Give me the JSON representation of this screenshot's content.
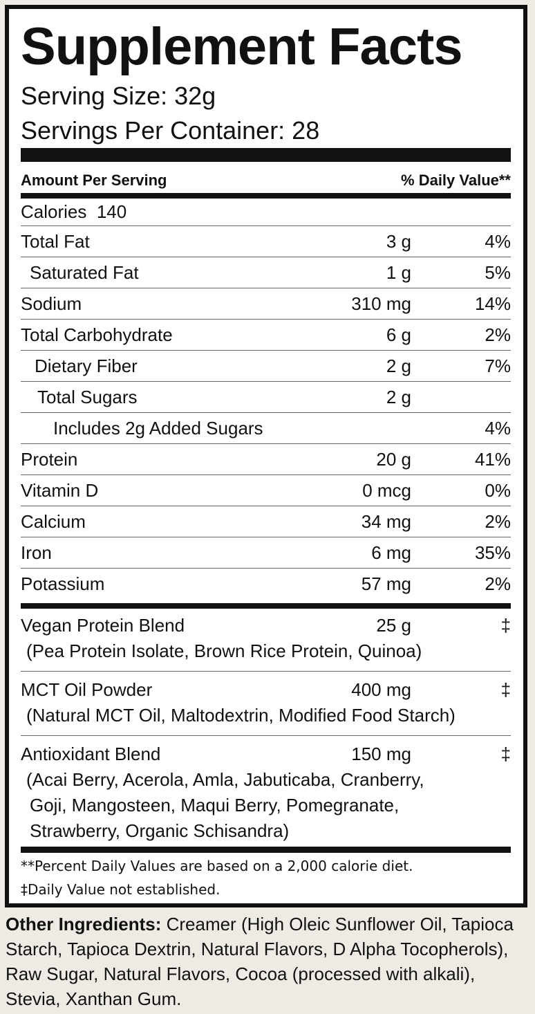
{
  "title": "Supplement Facts",
  "serving_size": "Serving Size: 32g",
  "servings_per_container": "Servings Per Container: 28",
  "header": {
    "amount": "Amount Per Serving",
    "dv": "% Daily Value**"
  },
  "calories": "Calories  140",
  "nutrients": [
    {
      "name": "Total Fat",
      "amount": "3 g",
      "dv": "4%"
    },
    {
      "name": "Saturated Fat",
      "amount": "1 g",
      "dv": "5%"
    },
    {
      "name": "Sodium",
      "amount": "310 mg",
      "dv": "14%"
    },
    {
      "name": "Total Carbohydrate",
      "amount": "6 g",
      "dv": "2%"
    },
    {
      "name": "Dietary Fiber",
      "amount": "2 g",
      "dv": "7%"
    },
    {
      "name": "Total Sugars",
      "amount": "2 g",
      "dv": ""
    },
    {
      "name": "Includes 2g Added Sugars",
      "amount": "",
      "dv": "4%"
    },
    {
      "name": "Protein",
      "amount": "20 g",
      "dv": "41%"
    },
    {
      "name": "Vitamin D",
      "amount": "0 mcg",
      "dv": "0%"
    },
    {
      "name": "Calcium",
      "amount": "34 mg",
      "dv": "2%"
    },
    {
      "name": "Iron",
      "amount": "6 mg",
      "dv": "35%"
    },
    {
      "name": "Potassium",
      "amount": "57 mg",
      "dv": "2%"
    }
  ],
  "blends": [
    {
      "name": "Vegan Protein Blend",
      "amount": "25 g",
      "dv": "‡",
      "sub": [
        "(Pea Protein Isolate, Brown Rice Protein, Quinoa)"
      ]
    },
    {
      "name": "MCT Oil Powder",
      "amount": "400 mg",
      "dv": "‡",
      "sub": [
        "(Natural MCT Oil, Maltodextrin, Modified Food Starch)"
      ]
    },
    {
      "name": "Antioxidant Blend",
      "amount": "150 mg",
      "dv": "‡",
      "sub": [
        "(Acai Berry, Acerola, Amla, Jabuticaba, Cranberry,",
        "Goji, Mangosteen, Maqui Berry, Pomegranate,",
        "Strawberry, Organic Schisandra)"
      ]
    }
  ],
  "footnotes": [
    "**Percent Daily Values are based on a 2,000 calorie diet.",
    "‡Daily Value not established."
  ],
  "other_ingredients": {
    "label": "Other Ingredients:",
    "text": " Creamer (High Oleic Sunflower Oil, Tapioca Starch, Tapioca Dextrin, Natural Flavors, D Alpha Tocopherols), Raw Sugar, Natural Flavors, Cocoa (processed with alkali), Stevia, Xanthan Gum."
  }
}
